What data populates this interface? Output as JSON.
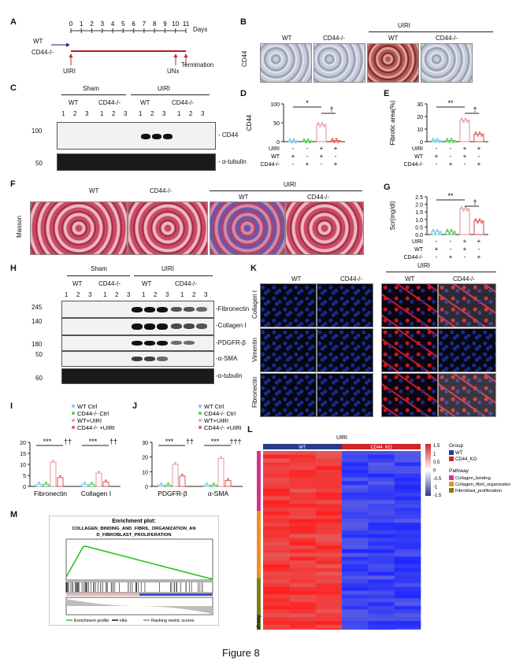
{
  "panel_labels": [
    "A",
    "B",
    "C",
    "D",
    "E",
    "F",
    "G",
    "H",
    "I",
    "J",
    "K",
    "L",
    "M"
  ],
  "timeline": {
    "groups": [
      "WT",
      "CD44-/-"
    ],
    "axis_label": "Days",
    "days": [
      "0",
      "1",
      "2",
      "3",
      "4",
      "5",
      "6",
      "7",
      "8",
      "9",
      "10",
      "11"
    ],
    "events": [
      "UIRI",
      "UNx",
      "Termination"
    ]
  },
  "ihc_b": {
    "row_label": "CD44",
    "cols": [
      "WT",
      "CD44-/-",
      "WT",
      "CD44-/-"
    ],
    "uiri_label": "UIRI"
  },
  "blot_c": {
    "sham": "Sham",
    "uiri": "UIRI",
    "wt": "WT",
    "ko": "CD44-/-",
    "lanes": [
      "1",
      "2",
      "3",
      "1",
      "2",
      "3",
      "1",
      "2",
      "3",
      "1",
      "2",
      "3"
    ],
    "markers": [
      "100",
      "50"
    ],
    "bands": [
      "CD44",
      "α-tubulin"
    ]
  },
  "masson_f": {
    "row_label": "Masson",
    "cols": [
      "WT",
      "CD44-/-",
      "WT",
      "CD44-/-"
    ],
    "uiri_label": "UIRI"
  },
  "blot_h": {
    "sham": "Sham",
    "uiri": "UIRI",
    "wt": "WT",
    "ko": "CD44-/-",
    "lanes": [
      "1",
      "2",
      "3",
      "1",
      "2",
      "3",
      "1",
      "2",
      "3",
      "1",
      "2",
      "3"
    ],
    "markers": [
      "245",
      "140",
      "180",
      "50",
      "60"
    ],
    "bands": [
      "Fibronectin",
      "Collagen I",
      "PDGFR-β",
      "α-SMA",
      "α-tubulin"
    ]
  },
  "if_k": {
    "cols": [
      "WT",
      "CD44-/-",
      "WT",
      "CD44-/-"
    ],
    "uiri_label": "UIRI",
    "rows": [
      "Collagen I",
      "Vimentin",
      "Fibronectin"
    ]
  },
  "factor_rows": {
    "labels": [
      "UIRI",
      "WT",
      "CD44-/-"
    ],
    "uiri": [
      "-",
      "-",
      "+",
      "+"
    ],
    "wt": [
      "+",
      "-",
      "+",
      "-"
    ],
    "ko": [
      "-",
      "+",
      "-",
      "+"
    ]
  },
  "chart_data": [
    {
      "panel": "D",
      "type": "bar",
      "ylabel": "CD44",
      "ylim": [
        0,
        100
      ],
      "yticks": [
        "0",
        "50",
        "100"
      ],
      "values": [
        2,
        2,
        45,
        3
      ],
      "colors": [
        "#7ec8e3",
        "#5cc85c",
        "#e8a0a8",
        "#e06060"
      ],
      "sig": [
        "*",
        "†"
      ]
    },
    {
      "panel": "E",
      "type": "bar",
      "ylabel": "Fibrotic area(%)",
      "ylim": [
        0,
        30
      ],
      "yticks": [
        "0",
        "10",
        "20",
        "30"
      ],
      "values": [
        1,
        1,
        17,
        6
      ],
      "colors": [
        "#7ec8e3",
        "#5cc85c",
        "#e8a0a8",
        "#e06060"
      ],
      "sig": [
        "**",
        "†"
      ]
    },
    {
      "panel": "G",
      "type": "bar",
      "ylabel": "Scr(mg/dl)",
      "ylim": [
        0,
        2.5
      ],
      "yticks": [
        "0.0",
        "0.5",
        "1.0",
        "1.5",
        "2.0",
        "2.5"
      ],
      "values": [
        0.2,
        0.2,
        1.7,
        0.9
      ],
      "colors": [
        "#7ec8e3",
        "#5cc85c",
        "#e8a0a8",
        "#e06060"
      ],
      "sig": [
        "**",
        "†"
      ]
    },
    {
      "panel": "I",
      "type": "bar",
      "legend": [
        "WT Ctrl",
        "CD44-/- Ctrl",
        "WT+UIRI",
        "CD44-/- +UIRI"
      ],
      "categories": [
        "Fibronectin",
        "Collagen I"
      ],
      "ylim": [
        0,
        20
      ],
      "yticks": [
        "0",
        "5",
        "10",
        "15",
        "20"
      ],
      "series": [
        {
          "name": "WT Ctrl",
          "values": [
            1,
            1
          ]
        },
        {
          "name": "CD44-/- Ctrl",
          "values": [
            1,
            1
          ]
        },
        {
          "name": "WT+UIRI",
          "values": [
            11,
            6
          ]
        },
        {
          "name": "CD44-/- +UIRI",
          "values": [
            4,
            2
          ]
        }
      ],
      "sig": [
        "***",
        "††",
        "***",
        "††"
      ]
    },
    {
      "panel": "J",
      "type": "bar",
      "legend": [
        "WT Ctrl",
        "CD44-/- Ctrl",
        "WT+UIRI",
        "CD44-/- +UIRI"
      ],
      "categories": [
        "PDGFR-β",
        "α-SMA"
      ],
      "ylim": [
        0,
        30
      ],
      "yticks": [
        "0",
        "10",
        "20",
        "30"
      ],
      "series": [
        {
          "name": "WT Ctrl",
          "values": [
            1,
            1
          ]
        },
        {
          "name": "CD44-/- Ctrl",
          "values": [
            1,
            1
          ]
        },
        {
          "name": "WT+UIRI",
          "values": [
            15,
            19
          ]
        },
        {
          "name": "CD44-/- +UIRI",
          "values": [
            7,
            4
          ]
        }
      ],
      "sig": [
        "***",
        "††",
        "***",
        "†††"
      ]
    },
    {
      "panel": "M",
      "type": "line",
      "title": "Enrichment plot:",
      "subtitle": "COLLAGEN_BINDING_AND_FIBRIL_ORGANIZATION_AN D_FIBROBLAST_PROLIFERATION",
      "legend": [
        "Enrichment profile",
        "Hits",
        "Ranking metric scores"
      ]
    }
  ],
  "heatmap_l": {
    "top_label": "UIRI",
    "groups": [
      "WT",
      "CD44_KO"
    ],
    "scale_ticks": [
      "1.5",
      "1",
      "0.5",
      "0",
      "-0.5",
      "-1",
      "-1.5"
    ],
    "legend_group_title": "Group",
    "legend_groups": [
      "WT",
      "CD44_KO"
    ],
    "legend_path_title": "Pathway",
    "legend_pathways": [
      "Collagen_binding",
      "Collagen_fibril_organization",
      "Fibroblast_proliferation"
    ],
    "side_label": "Pathway"
  },
  "figure_caption": "Figure 8"
}
